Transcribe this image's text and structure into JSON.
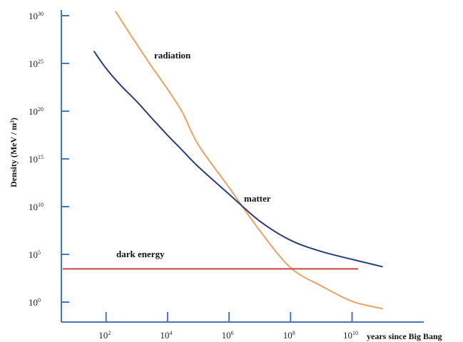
{
  "chart_data": {
    "type": "line",
    "title": "",
    "xlabel": "years since Big Bang",
    "ylabel": "Density (MeV / m³)",
    "x_scale": "log",
    "y_scale": "log",
    "xlim": [
      1,
      1000000000000.0
    ],
    "ylim": [
      0.1,
      1e+30
    ],
    "x_ticks": [
      {
        "base": "10",
        "exp": "2"
      },
      {
        "base": "10",
        "exp": "4"
      },
      {
        "base": "10",
        "exp": "6"
      },
      {
        "base": "10",
        "exp": "8"
      },
      {
        "base": "10",
        "exp": "10"
      }
    ],
    "y_ticks": [
      {
        "base": "10",
        "exp": "0"
      },
      {
        "base": "10",
        "exp": "5"
      },
      {
        "base": "10",
        "exp": "10"
      },
      {
        "base": "10",
        "exp": "15"
      },
      {
        "base": "10",
        "exp": "20"
      },
      {
        "base": "10",
        "exp": "25"
      },
      {
        "base": "10",
        "exp": "30"
      }
    ],
    "x_tick_values": [
      100.0,
      10000.0,
      1000000.0,
      100000000.0,
      10000000000.0
    ],
    "y_tick_values": [
      1,
      100000.0,
      10000000000.0,
      1000000000000000.0,
      1e+20,
      1e+25,
      1e+30
    ],
    "grid": false,
    "legend": "none",
    "series": [
      {
        "name": "radiation",
        "color": "#f0a060",
        "x": [
          200,
          500,
          1000,
          3000,
          10000,
          30000,
          100000.0,
          1000000.0,
          10000000.0,
          100000000.0,
          1000000000.0,
          10000000000.0,
          100000000000.0
        ],
        "y": [
          3e+30,
          3e+28,
          1e+27,
          5e+24,
          2e+22,
          8e+19,
          3e+16,
          1000000000000.0,
          30000000.0,
          4000.0,
          50,
          1.2,
          0.2
        ]
      },
      {
        "name": "matter",
        "color": "#2b3d7a",
        "x": [
          40,
          100,
          300,
          1000,
          3000,
          10000,
          30000,
          100000.0,
          1000000.0,
          10000000.0,
          100000000.0,
          1000000000.0,
          10000000000.0,
          100000000000.0
        ],
        "y": [
          2e+26,
          3e+24,
          5e+22,
          1e+21,
          2e+19,
          3e+17,
          8000000000000000.0,
          150000000000000.0,
          200000000000.0,
          300000000.0,
          3000000.0,
          200000.0,
          30000.0,
          5000.0
        ]
      },
      {
        "name": "dark energy",
        "color": "#cc4444",
        "x": [
          1,
          100000000000.0
        ],
        "y": [
          3000.0,
          3000.0
        ]
      }
    ],
    "annotations": [
      {
        "text": "radiation"
      },
      {
        "text": "matter"
      },
      {
        "text": "dark energy"
      }
    ]
  }
}
